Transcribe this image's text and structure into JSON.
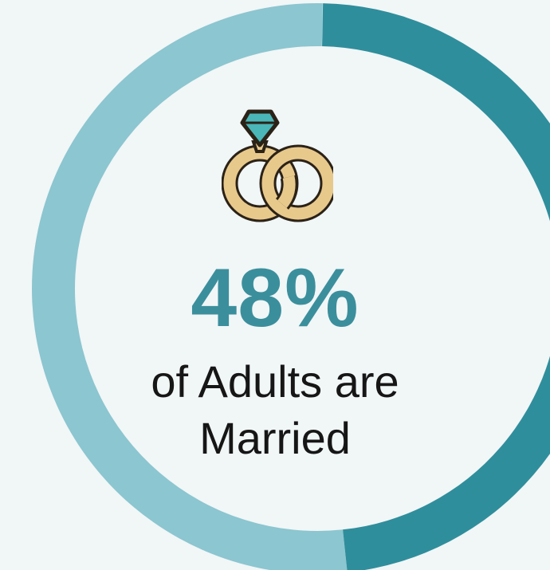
{
  "chart_data": {
    "type": "pie",
    "values": [
      48,
      52
    ],
    "highlight_value_label": "48%",
    "caption_line1": "of Adults are",
    "caption_line2": "Married",
    "colors": {
      "married": "#2f8e9c",
      "other": "#8cc6d0",
      "accent_text": "#3b8f9c",
      "background": "#f1f6f7",
      "ring_gold": "#e8c98c",
      "ring_outline": "#2b2217",
      "diamond": "#4ab6b8"
    }
  },
  "icon": "wedding-rings-icon"
}
